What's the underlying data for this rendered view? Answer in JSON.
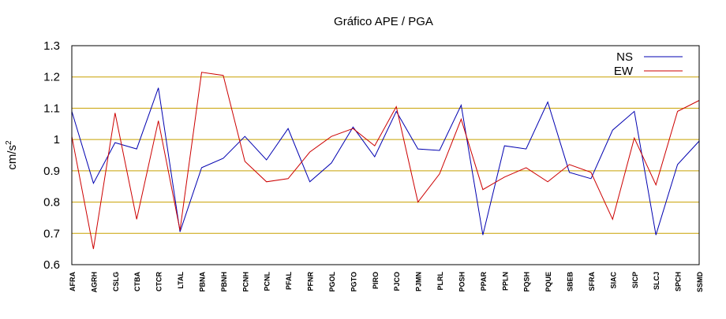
{
  "chart_data": {
    "type": "line",
    "title": "Gráfico  APE / PGA",
    "xlabel": "",
    "ylabel": "cm/s",
    "ylabel_superscript": "2",
    "ylim": [
      0.6,
      1.3
    ],
    "yticks": [
      "0.6",
      "0.7",
      "0.8",
      "0.9",
      "1",
      "1.1",
      "1.2",
      "1.3"
    ],
    "grid": true,
    "grid_color": "#c8a000",
    "legend_position": "top-right",
    "categories": [
      "AFRA",
      "AGRH",
      "CSLG",
      "CTBA",
      "CTCR",
      "LTAL",
      "PBNA",
      "PBNH",
      "PCNH",
      "PCNL",
      "PFAL",
      "PFNR",
      "PGOL",
      "PGTO",
      "PIRO",
      "PJCO",
      "PJMN",
      "PLRL",
      "POSH",
      "PPAR",
      "PPLN",
      "PQSH",
      "PQUE",
      "SBEB",
      "SFRA",
      "SIAC",
      "SICP",
      "SLCJ",
      "SPCH",
      "SSMD"
    ],
    "series": [
      {
        "name": "NS",
        "color": "#0000b0",
        "values": [
          1.09,
          0.86,
          0.99,
          0.97,
          1.165,
          0.705,
          0.91,
          0.94,
          1.01,
          0.935,
          1.035,
          0.865,
          0.925,
          1.04,
          0.945,
          1.09,
          0.97,
          0.965,
          1.11,
          0.695,
          0.98,
          0.97,
          1.12,
          0.895,
          0.875,
          1.03,
          1.09,
          0.695,
          0.92,
          0.995
        ]
      },
      {
        "name": "EW",
        "color": "#cc0000",
        "values": [
          1.01,
          0.65,
          1.085,
          0.745,
          1.06,
          0.71,
          1.215,
          1.205,
          0.93,
          0.865,
          0.875,
          0.96,
          1.01,
          1.035,
          0.98,
          1.105,
          0.8,
          0.89,
          1.065,
          0.84,
          0.88,
          0.91,
          0.865,
          0.92,
          0.895,
          0.745,
          1.005,
          0.855,
          1.09,
          1.125
        ]
      }
    ]
  }
}
